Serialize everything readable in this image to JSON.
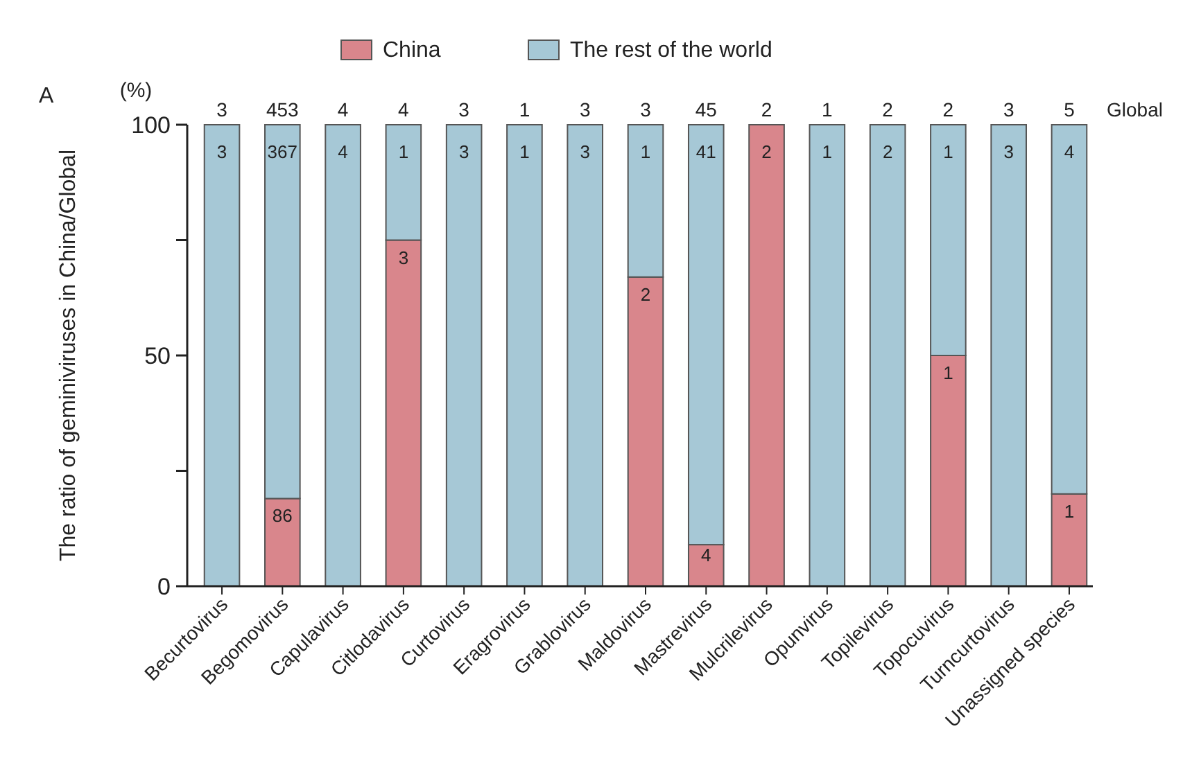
{
  "chart_data": {
    "type": "bar",
    "stacked": true,
    "ylabel": "The ratio of geminiviruses in China/Global",
    "categories": [
      "Becurtovirus",
      "Begomovirus",
      "Capulavirus",
      "Citlodavirus",
      "Curtovirus",
      "Eragrovirus",
      "Grablovirus",
      "Maldovirus",
      "Mastrevirus",
      "Mulcrilevirus",
      "Opunvirus",
      "Topilevirus",
      "Topocuvirus",
      "Turncurtovirus",
      "Unassigned species"
    ],
    "series": [
      {
        "name": "China",
        "color": "#d9868c",
        "values": [
          0,
          19,
          0,
          75,
          0,
          0,
          0,
          67,
          9,
          100,
          0,
          0,
          50,
          0,
          20
        ]
      },
      {
        "name": "The rest of the world",
        "color": "#a6c8d6",
        "values": [
          100,
          81,
          100,
          25,
          100,
          100,
          100,
          33,
          91,
          0,
          100,
          100,
          50,
          100,
          80
        ]
      }
    ],
    "ylim": [
      0,
      100
    ],
    "yticks": [
      0,
      {
        "value": 25,
        "label": null
      },
      50,
      {
        "value": 75,
        "label": null
      },
      100
    ],
    "legend": "top",
    "grid": false,
    "annotations": [
      "A",
      "(%)",
      "Global",
      "3",
      "453",
      "4",
      "4",
      "3",
      "1",
      "3",
      "3",
      "45",
      "2",
      "1",
      "2",
      "2",
      "3",
      "5",
      "3",
      "367",
      "4",
      "1",
      "3",
      "1",
      "3",
      "1",
      "41",
      "1",
      "2",
      "1",
      "3",
      "4",
      "86",
      "3",
      "2",
      "4",
      "2",
      "1",
      "1"
    ]
  }
}
